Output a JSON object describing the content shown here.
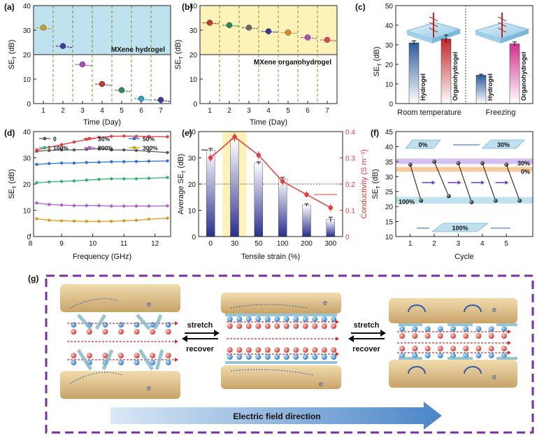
{
  "panel_labels": {
    "a": "(a)",
    "b": "(b)",
    "c": "(c)",
    "d": "(d)",
    "e": "(e)",
    "f": "(f)",
    "g": "(g)"
  },
  "colors": {
    "blue_band": "#bfe3ee",
    "yellow_band": "#fdf3b8",
    "red": "#e8393b",
    "navy": "#2a2f8e",
    "purple_dash": "#7a2fa0",
    "arrow_blue": "#2f5fa8",
    "bar_grad_top": "#1f2a7a",
    "magenta": "#d12f8e",
    "dark_red": "#b3262a",
    "orange_band": "#f8c99a",
    "lavender_band": "#d4bff0",
    "cyan_band": "#bfe3ee"
  },
  "chart_data": [
    {
      "id": "a",
      "type": "scatter",
      "title": "",
      "annotation": "MXene hydrogel",
      "xlabel": "Time (Day)",
      "ylabel": "SE_T (dB)",
      "ylabel_main": "SE",
      "ylabel_sub": "T",
      "ylabel_unit": " (dB)",
      "xlim": [
        0.5,
        7.5
      ],
      "ylim": [
        0,
        40
      ],
      "xticks": [
        "1",
        "2",
        "3",
        "4",
        "5",
        "6",
        "7"
      ],
      "yticks": [
        "0",
        "10",
        "20",
        "30",
        "40"
      ],
      "threshold": 20,
      "x": [
        1,
        2,
        3,
        4,
        5,
        6,
        7
      ],
      "values": [
        31,
        23.5,
        16,
        8,
        5.5,
        2,
        1.5
      ],
      "point_colors": [
        "#c9a22a",
        "#3d3aa0",
        "#b04bc0",
        "#c0392b",
        "#2e8b57",
        "#2aa7c9",
        "#3a3a9a"
      ],
      "vlines": [
        1.5,
        2.5,
        3.5,
        4.5,
        5.5,
        6.5
      ]
    },
    {
      "id": "b",
      "type": "scatter",
      "annotation": "MXene organohydrogel",
      "xlabel": "Time (Day)",
      "ylabel": "SE_T (dB)",
      "ylabel_main": "SE",
      "ylabel_sub": "T",
      "ylabel_unit": " (dB)",
      "xlim": [
        0.5,
        7.5
      ],
      "ylim": [
        0,
        40
      ],
      "xticks": [
        "1",
        "2",
        "3",
        "4",
        "5",
        "6",
        "7"
      ],
      "yticks": [
        "0",
        "10",
        "20",
        "30",
        "40"
      ],
      "threshold": 20,
      "x": [
        1,
        2,
        3,
        4,
        5,
        6,
        7
      ],
      "values": [
        33,
        32,
        31,
        29.5,
        29,
        27,
        26
      ],
      "point_colors": [
        "#c0392b",
        "#2e8b57",
        "#6a6a6a",
        "#3a3a9a",
        "#e08a2a",
        "#b04bc0",
        "#e04a5a"
      ],
      "vlines": [
        1.5,
        2.5,
        3.5,
        4.5,
        5.5,
        6.5
      ]
    },
    {
      "id": "c",
      "type": "bar",
      "ylabel": "SE_T (dB)",
      "ylabel_main": "SE",
      "ylabel_sub": "T",
      "ylabel_unit": " (dB)",
      "ylim": [
        0,
        50
      ],
      "yticks": [
        "0",
        "10",
        "20",
        "30",
        "40",
        "50"
      ],
      "groups": [
        "Room temperature",
        "Freezing"
      ],
      "series": [
        {
          "name": "Hydrogel",
          "values": [
            31,
            14.5
          ]
        },
        {
          "name": "Organohydrogel",
          "values": [
            33,
            30.5
          ]
        }
      ],
      "errors": [
        [
          1,
          0.5
        ],
        [
          2,
          1
        ]
      ]
    },
    {
      "id": "d",
      "type": "line",
      "xlabel": "Frequency (GHz)",
      "ylabel": "SE_T (dB)",
      "ylabel_main": "SE",
      "ylabel_sub": "T",
      "ylabel_unit": " (dB)",
      "xlim": [
        8.1,
        12.5
      ],
      "ylim": [
        0,
        40
      ],
      "xticks": [
        "8",
        "9",
        "10",
        "11",
        "12"
      ],
      "yticks": [
        "0",
        "10",
        "20",
        "30",
        "40"
      ],
      "x": [
        8.2,
        8.6,
        9.0,
        9.4,
        9.8,
        10.2,
        10.6,
        11.0,
        11.4,
        11.8,
        12.4
      ],
      "series": [
        {
          "name": "0",
          "color": "#555555",
          "values": [
            32.5,
            32.8,
            33,
            33,
            33.2,
            33.5,
            33,
            33,
            32.8,
            32.5,
            32
          ]
        },
        {
          "name": "30%",
          "color": "#e8393b",
          "values": [
            33,
            34,
            35,
            36,
            37,
            37.8,
            38.2,
            38.3,
            38.2,
            38.1,
            38
          ]
        },
        {
          "name": "50%",
          "color": "#2f6fd6",
          "values": [
            27.5,
            27.8,
            28,
            28,
            28.2,
            28.3,
            28.5,
            28.5,
            28.6,
            28.7,
            28.8
          ]
        },
        {
          "name": "100%",
          "color": "#2db36a",
          "values": [
            20.5,
            20.8,
            21,
            21.2,
            21.5,
            21.8,
            22,
            22,
            22,
            22.2,
            22.5
          ]
        },
        {
          "name": "200%",
          "color": "#b05ad6",
          "values": [
            12.8,
            12.2,
            12,
            11.8,
            11.8,
            11.8,
            11.6,
            11.6,
            11.6,
            11.6,
            11.7
          ]
        },
        {
          "name": "300%",
          "color": "#d99a1c",
          "values": [
            6.8,
            6.2,
            6,
            5.9,
            5.8,
            5.8,
            5.8,
            6,
            6.2,
            6.6,
            7
          ]
        }
      ]
    },
    {
      "id": "e",
      "type": "bar",
      "xlabel": "Tensile strain (%)",
      "ylabel": "Average SE_T (dB)",
      "ylabel_main": "Average SE",
      "ylabel_sub": "T",
      "ylabel_unit": " (dB)",
      "ylabel_right": "Conductivity (S m⁻¹)",
      "categories": [
        "0",
        "30",
        "50",
        "100",
        "200",
        "300"
      ],
      "ylim": [
        0,
        40
      ],
      "yticks": [
        "0",
        "10",
        "20",
        "30",
        "40"
      ],
      "ylim_right": [
        0,
        0.4
      ],
      "yticks_right": [
        "0",
        "0.1",
        "0.2",
        "0.3",
        "0.4"
      ],
      "values": [
        33,
        37,
        28,
        22,
        12,
        6.5
      ],
      "errors": [
        0.6,
        0.7,
        0.5,
        0.6,
        0.5,
        0.9
      ],
      "conductivity": [
        0.3,
        0.38,
        0.31,
        0.21,
        0.16,
        0.11
      ],
      "conductivity_err": [
        0.015,
        0.015,
        0.015,
        0.015,
        0.012,
        0.015
      ],
      "threshold": 20
    },
    {
      "id": "f",
      "type": "scatter",
      "xlabel": "Cycle",
      "ylabel": "SE_T (dB)",
      "ylabel_main": "SE",
      "ylabel_sub": "T",
      "ylabel_unit": " (dB)",
      "xlim": [
        0.4,
        6.1
      ],
      "ylim": [
        10,
        45
      ],
      "xticks": [
        "1",
        "2",
        "3",
        "4",
        "5"
      ],
      "yticks": [
        "10",
        "15",
        "20",
        "25",
        "30",
        "35",
        "40",
        "45"
      ],
      "band_labels": {
        "b30": "30%",
        "b0": "0%",
        "b100": "100%"
      },
      "bands": {
        "b30": [
          34.2,
          36
        ],
        "b0": [
          31.6,
          33.2
        ],
        "b100": [
          21,
          23.2
        ]
      },
      "high_points": {
        "x": [
          1,
          2,
          3,
          4,
          5
        ],
        "values": [
          34,
          35,
          34.5,
          34.5,
          34
        ]
      },
      "low_points": {
        "x": [
          1.45,
          2.6,
          3.55,
          4.55,
          5.55
        ],
        "values": [
          22,
          23.5,
          21.5,
          22,
          22
        ]
      },
      "pads": {
        "top_left": "0%",
        "top_right": "30%",
        "bottom": "100%"
      }
    }
  ],
  "panel_g": {
    "stretch1": "stretch",
    "recover1": "recover",
    "stretch2": "stretch",
    "recover2": "recover",
    "electron": "e",
    "field_label": "Electric field direction"
  }
}
